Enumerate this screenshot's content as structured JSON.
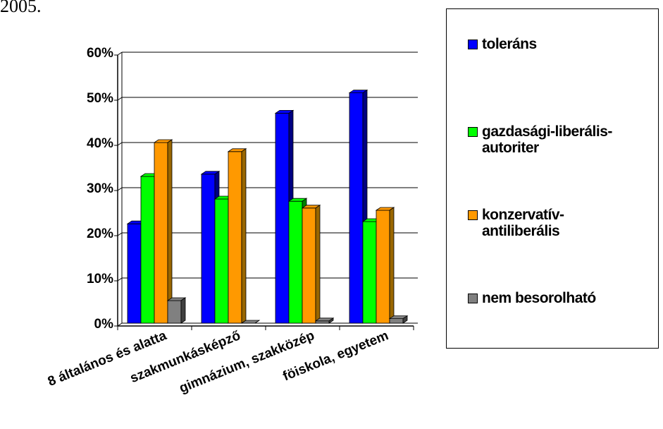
{
  "top_text": "2005.",
  "chart_data": {
    "type": "bar",
    "categories": [
      "8 általános és alatta",
      "szakmunkásképző",
      "gimnázium, szakközép",
      "föiskola, egyetem"
    ],
    "series": [
      {
        "name": "toleráns",
        "values": [
          22,
          33,
          46.5,
          51
        ]
      },
      {
        "name": "gazdasági-liberális-\nautoriter",
        "values": [
          32.5,
          27.5,
          27,
          22.5
        ]
      },
      {
        "name": "konzervatív-\nantiliberális",
        "values": [
          40,
          38,
          25.5,
          25
        ]
      },
      {
        "name": "nem besorolható",
        "values": [
          5,
          0,
          0.5,
          1
        ]
      }
    ],
    "colors": [
      "#0000ff",
      "#00ff00",
      "#ff9900",
      "#808080"
    ],
    "side_colors": [
      "#000080",
      "#008000",
      "#996600",
      "#404040"
    ],
    "yticks": [
      "0%",
      "10%",
      "20%",
      "30%",
      "40%",
      "50%",
      "60%"
    ],
    "ylim": [
      0,
      60
    ],
    "grid": true,
    "legend_position": "right"
  }
}
